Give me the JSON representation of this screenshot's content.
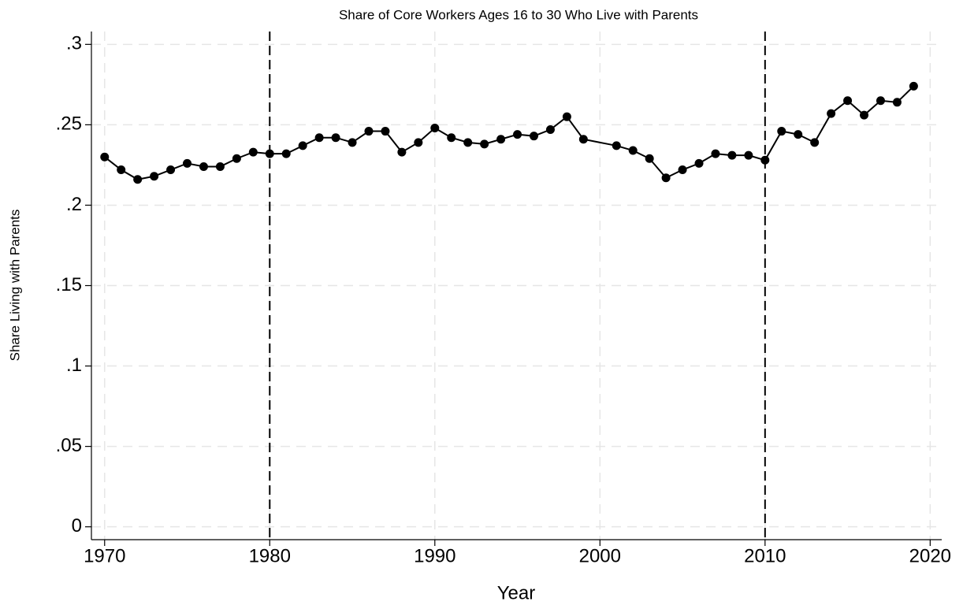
{
  "chart_data": {
    "type": "line",
    "title": "Share of Core Workers Ages 16 to 30 Who Live with Parents",
    "x_label": "Year",
    "y_label": "Share Living with Parents",
    "x": [
      1970,
      1971,
      1972,
      1973,
      1974,
      1975,
      1976,
      1977,
      1978,
      1979,
      1980,
      1981,
      1982,
      1983,
      1984,
      1985,
      1986,
      1987,
      1988,
      1989,
      1990,
      1991,
      1992,
      1993,
      1994,
      1995,
      1996,
      1997,
      1998,
      1999,
      2001,
      2002,
      2003,
      2004,
      2005,
      2006,
      2007,
      2008,
      2009,
      2010,
      2011,
      2012,
      2013,
      2014,
      2015,
      2016,
      2017,
      2018,
      2019
    ],
    "values": [
      0.23,
      0.222,
      0.216,
      0.218,
      0.222,
      0.226,
      0.224,
      0.224,
      0.229,
      0.233,
      0.232,
      0.232,
      0.237,
      0.242,
      0.242,
      0.239,
      0.246,
      0.246,
      0.233,
      0.239,
      0.248,
      0.242,
      0.239,
      0.238,
      0.241,
      0.244,
      0.243,
      0.247,
      0.255,
      0.241,
      0.237,
      0.234,
      0.229,
      0.217,
      0.222,
      0.226,
      0.232,
      0.231,
      0.231,
      0.228,
      0.246,
      0.244,
      0.239,
      0.257,
      0.265,
      0.256,
      0.265,
      0.264,
      0.274
    ],
    "color": "#000000",
    "xlim": [
      1969.2,
      2020.7
    ],
    "xticks": [
      1970,
      1980,
      1990,
      2000,
      2010,
      2020
    ],
    "ylim": [
      -0.008,
      0.308
    ],
    "yticks": [
      0,
      {
        "value": 0.05,
        "label": ".05"
      },
      {
        "value": 0.1,
        "label": ".1"
      },
      {
        "value": 0.15,
        "label": ".15"
      },
      {
        "value": 0.2,
        "label": ".2"
      },
      {
        "value": 0.25,
        "label": ".25"
      },
      {
        "value": 0.3,
        "label": ".3"
      }
    ],
    "reference_lines": [
      1980,
      2010
    ],
    "grid": true
  }
}
